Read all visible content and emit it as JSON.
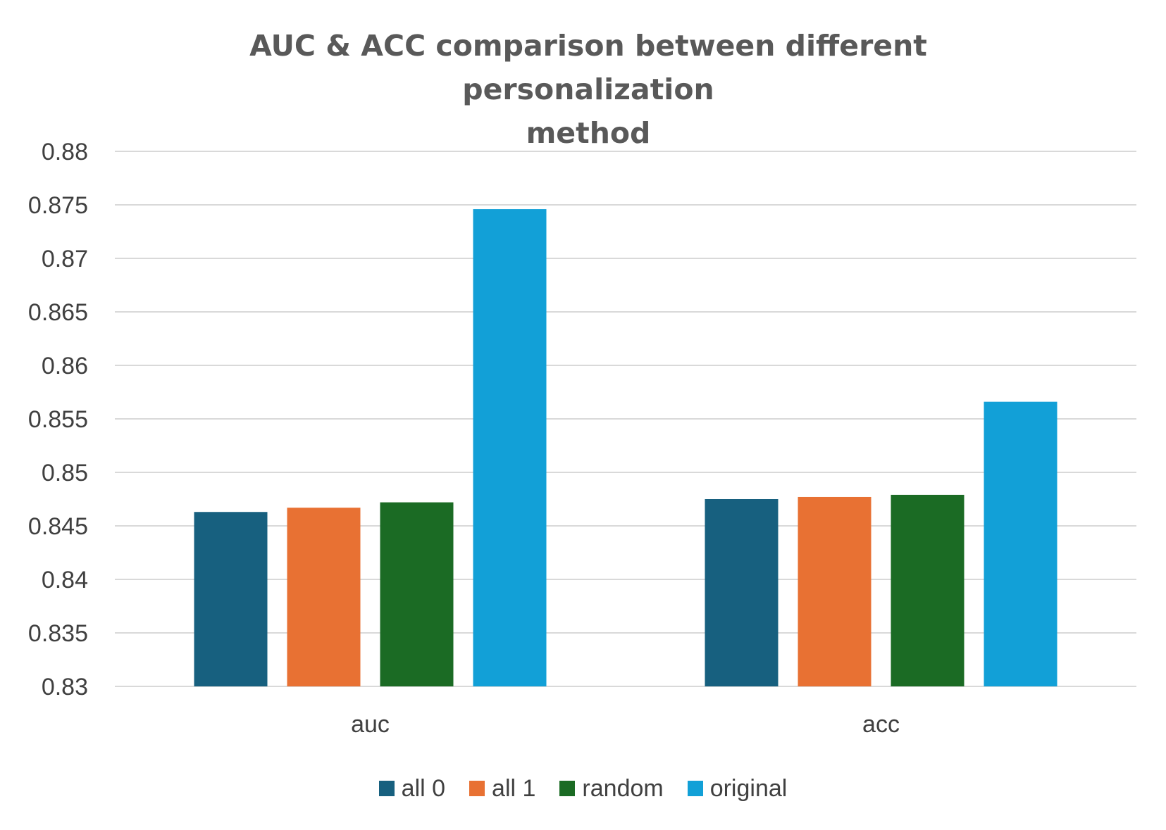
{
  "chart_data": {
    "type": "bar",
    "title_lines": [
      "AUC & ACC comparison between different personalization",
      "method"
    ],
    "categories": [
      "auc",
      "acc"
    ],
    "series": [
      {
        "name": "all 0",
        "color": "#17607F",
        "values": [
          0.8463,
          0.8475
        ]
      },
      {
        "name": "all 1",
        "color": "#E87133",
        "values": [
          0.8467,
          0.8477
        ]
      },
      {
        "name": "random",
        "color": "#1B6B24",
        "values": [
          0.8472,
          0.8479
        ]
      },
      {
        "name": "original",
        "color": "#12A0D7",
        "values": [
          0.8746,
          0.8566
        ]
      }
    ],
    "ylim": [
      0.83,
      0.88
    ],
    "yticks": [
      "0.83",
      "0.835",
      "0.84",
      "0.845",
      "0.85",
      "0.855",
      "0.86",
      "0.865",
      "0.87",
      "0.875",
      "0.88"
    ],
    "xlabel": "",
    "ylabel": "",
    "grid": true,
    "legend_position": "bottom"
  }
}
